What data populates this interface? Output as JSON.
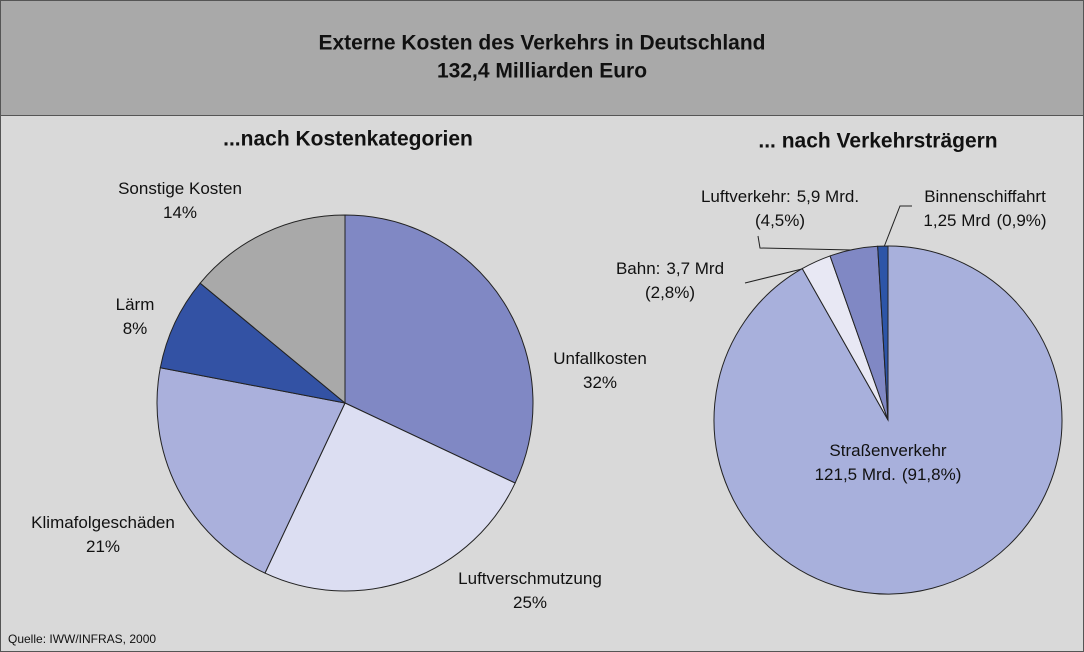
{
  "title": "Externe Kosten des Verkehrs in Deutschland",
  "subtitle": "132,4 Milliarden Euro",
  "source": "Quelle: IWW/INFRAS, 2000",
  "chart_data": [
    {
      "type": "pie",
      "title": "...nach Kostenkategorien",
      "categories": [
        "Unfallkosten",
        "Luftverschmutzung",
        "Klimafolgeschäden",
        "Lärm",
        "Sonstige Kosten"
      ],
      "values": [
        32,
        25,
        21,
        8,
        14
      ],
      "value_labels": [
        "32%",
        "25%",
        "21%",
        "8%",
        "14%"
      ],
      "colors": [
        "#8088c4",
        "#dcdef2",
        "#aab0dc",
        "#3352a4",
        "#a9a9a9"
      ]
    },
    {
      "type": "pie",
      "title": "... nach Verkehrsträgern",
      "categories": [
        "Straßenverkehr",
        "Bahn:",
        "Luftverkehr:",
        "Binnenschiffahrt"
      ],
      "values": [
        121.5,
        3.7,
        5.9,
        1.25
      ],
      "value_labels": [
        "121,5 Mrd.",
        "3,7 Mrd",
        "5,9 Mrd.",
        "1,25 Mrd"
      ],
      "share_labels": [
        "(91,8%)",
        "(2,8%)",
        "(4,5%)",
        "(0,9%)"
      ],
      "colors": [
        "#a8b0dc",
        "#e8e8f4",
        "#8088c4",
        "#2d55a8"
      ]
    }
  ]
}
